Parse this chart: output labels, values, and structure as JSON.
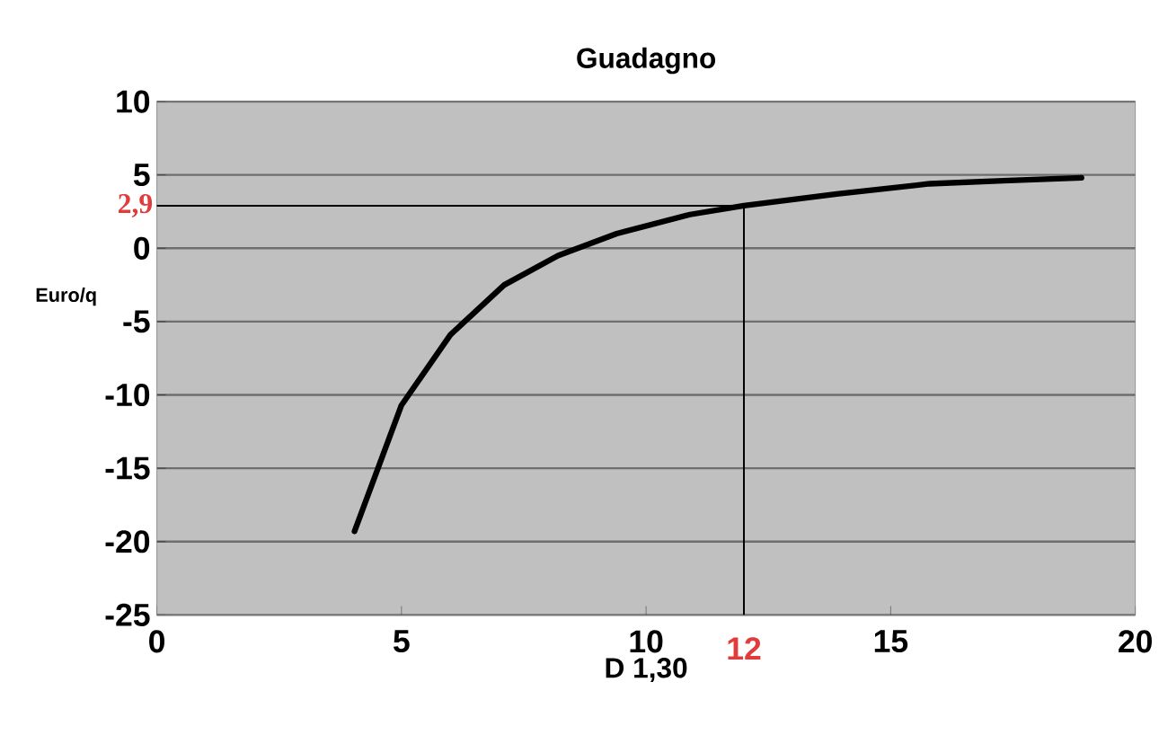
{
  "chart_data": {
    "type": "line",
    "title": "Guadagno",
    "xlabel": "D 1,30",
    "ylabel": "Euro/q",
    "x": [
      4.04,
      5.0,
      6.0,
      7.1,
      8.2,
      9.4,
      10.9,
      12,
      13.9,
      15.8,
      17.3,
      18.9
    ],
    "series": [
      {
        "color": "#000000",
        "values": [
          -19.3,
          -10.7,
          -5.9,
          -2.5,
          -0.5,
          1.0,
          2.3,
          2.9,
          3.7,
          4.4,
          4.6,
          4.8
        ]
      }
    ],
    "xlim": [
      0,
      20
    ],
    "ylim": [
      -25,
      10
    ],
    "xticks": [
      0,
      5,
      10,
      15,
      20
    ],
    "yticks": [
      -25,
      -20,
      -15,
      -10,
      -5,
      0,
      5,
      10
    ],
    "grid": "y",
    "marker": "none",
    "line_style": "solid",
    "ref_lines": [
      {
        "axis": "y",
        "value": 2.9,
        "label": "2,9"
      },
      {
        "axis": "x",
        "value": 12,
        "label": "12"
      }
    ]
  }
}
